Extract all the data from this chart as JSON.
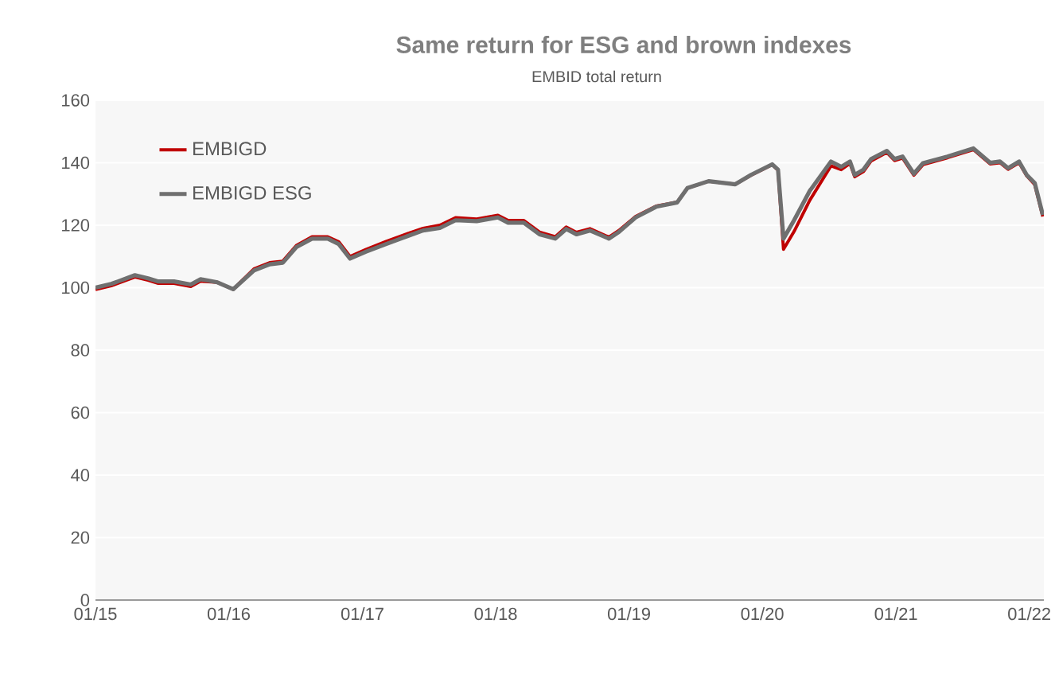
{
  "chart_data": {
    "type": "line",
    "title": "Same return for ESG and brown indexes",
    "subtitle": "EMBID total return",
    "x": [
      "2015-01-01",
      "2015-02-13",
      "2015-03-04",
      "2015-04-19",
      "2015-05-25",
      "2015-06-22",
      "2015-08-04",
      "2015-09-19",
      "2015-10-16",
      "2015-12-01",
      "2016-01-13",
      "2016-03-10",
      "2016-04-22",
      "2016-05-28",
      "2016-07-04",
      "2016-08-16",
      "2016-09-28",
      "2016-10-28",
      "2016-11-28",
      "2017-01-10",
      "2017-03-07",
      "2017-05-04",
      "2017-06-16",
      "2017-08-01",
      "2017-09-13",
      "2017-11-10",
      "2018-01-07",
      "2018-02-04",
      "2018-03-19",
      "2018-05-01",
      "2018-06-13",
      "2018-07-13",
      "2018-08-10",
      "2018-09-16",
      "2018-11-07",
      "2018-12-04",
      "2019-01-19",
      "2019-03-16",
      "2019-05-13",
      "2019-06-10",
      "2019-08-07",
      "2019-10-19",
      "2019-12-01",
      "2020-01-28",
      "2020-02-13",
      "2020-02-28",
      "2020-03-28",
      "2020-05-10",
      "2020-07-07",
      "2020-08-04",
      "2020-08-28",
      "2020-09-10",
      "2020-10-04",
      "2020-10-25",
      "2020-12-07",
      "2020-12-28",
      "2021-01-19",
      "2021-02-19",
      "2021-03-16",
      "2021-05-22",
      "2021-08-01",
      "2021-09-16",
      "2021-10-13",
      "2021-11-04",
      "2021-12-04",
      "2021-12-25",
      "2022-01-16",
      "2022-02-07"
    ],
    "series": [
      {
        "name": "EMBIGD",
        "color": "#c00000",
        "values": [
          99.4,
          100.6,
          101.4,
          103.4,
          102.4,
          101.4,
          101.4,
          100.4,
          102.1,
          101.7,
          99.5,
          106,
          108,
          108.5,
          113.5,
          116.3,
          116.3,
          114.7,
          110,
          112.2,
          114.8,
          117.3,
          119,
          120,
          122.4,
          122,
          123.2,
          121.5,
          121.5,
          117.8,
          116.3,
          119.4,
          117.7,
          118.9,
          116.2,
          118.3,
          122.8,
          126.1,
          127.4,
          131.9,
          134.1,
          133.1,
          136,
          139.4,
          137.6,
          112.3,
          118,
          128,
          139,
          137.8,
          139.8,
          135.5,
          137.2,
          140.6,
          143.3,
          140.7,
          141.5,
          136,
          139.4,
          141.6,
          144.2,
          139.6,
          140,
          137.9,
          140,
          135.8,
          133,
          122.8
        ]
      },
      {
        "name": "EMBIGD ESG",
        "color": "#6f6f6f",
        "values": [
          100,
          101.2,
          102,
          104,
          103,
          102,
          102,
          101,
          102.7,
          101.7,
          99.5,
          105.5,
          107.5,
          108,
          113,
          115.7,
          115.7,
          114,
          109.3,
          111.5,
          114,
          116.5,
          118.3,
          119.1,
          121.6,
          121.3,
          122.5,
          120.8,
          120.8,
          117.1,
          115.7,
          118.8,
          117.1,
          118.3,
          115.7,
          117.8,
          122.5,
          125.9,
          127.3,
          131.9,
          134.1,
          133.1,
          136.1,
          139.5,
          137.8,
          115.7,
          121.6,
          131,
          140.4,
          138.7,
          140.4,
          136.1,
          137.8,
          141.2,
          143.8,
          141.2,
          142,
          136.5,
          139.9,
          142,
          144.6,
          140,
          140.4,
          138.3,
          140.4,
          136.1,
          133.5,
          123.3
        ]
      }
    ],
    "xlim": [
      "2015-01-01",
      "2022-02-10"
    ],
    "xticks": [
      {
        "value": "2015-01-01",
        "label": "01/15"
      },
      {
        "value": "2016-01-01",
        "label": "01/16"
      },
      {
        "value": "2017-01-01",
        "label": "01/17"
      },
      {
        "value": "2018-01-01",
        "label": "01/18"
      },
      {
        "value": "2019-01-01",
        "label": "01/19"
      },
      {
        "value": "2020-01-01",
        "label": "01/20"
      },
      {
        "value": "2021-01-01",
        "label": "01/21"
      },
      {
        "value": "2022-01-01",
        "label": "01/22"
      }
    ],
    "ylim": [
      0,
      160
    ],
    "yticks": [
      0,
      20,
      40,
      60,
      80,
      100,
      120,
      140,
      160
    ],
    "grid": "y",
    "legend": "top left",
    "marker": "none",
    "line_style": "solid"
  }
}
